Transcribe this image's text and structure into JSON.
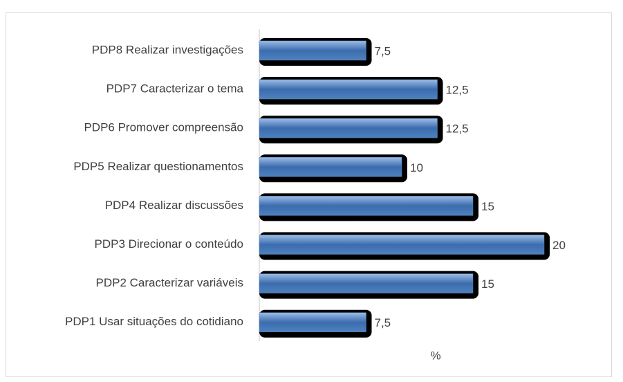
{
  "chart_data": {
    "type": "bar",
    "orientation": "horizontal",
    "categories": [
      "PDP8 Realizar investigações",
      "PDP7 Caracterizar o tema",
      "PDP6 Promover compreensão",
      "PDP5 Realizar questionamentos",
      "PDP4 Realizar discussões",
      "PDP3 Direcionar o conteúdo",
      "PDP2 Caracterizar variáveis",
      "PDP1 Usar situações do cotidiano"
    ],
    "values": [
      7.5,
      12.5,
      12.5,
      10,
      15,
      20,
      15,
      7.5
    ],
    "value_labels": [
      "7,5",
      "12,5",
      "12,5",
      "10",
      "15",
      "20",
      "15",
      "7,5"
    ],
    "xlabel": "%",
    "xlim": [
      0,
      20
    ],
    "color": "#4f81bd"
  }
}
